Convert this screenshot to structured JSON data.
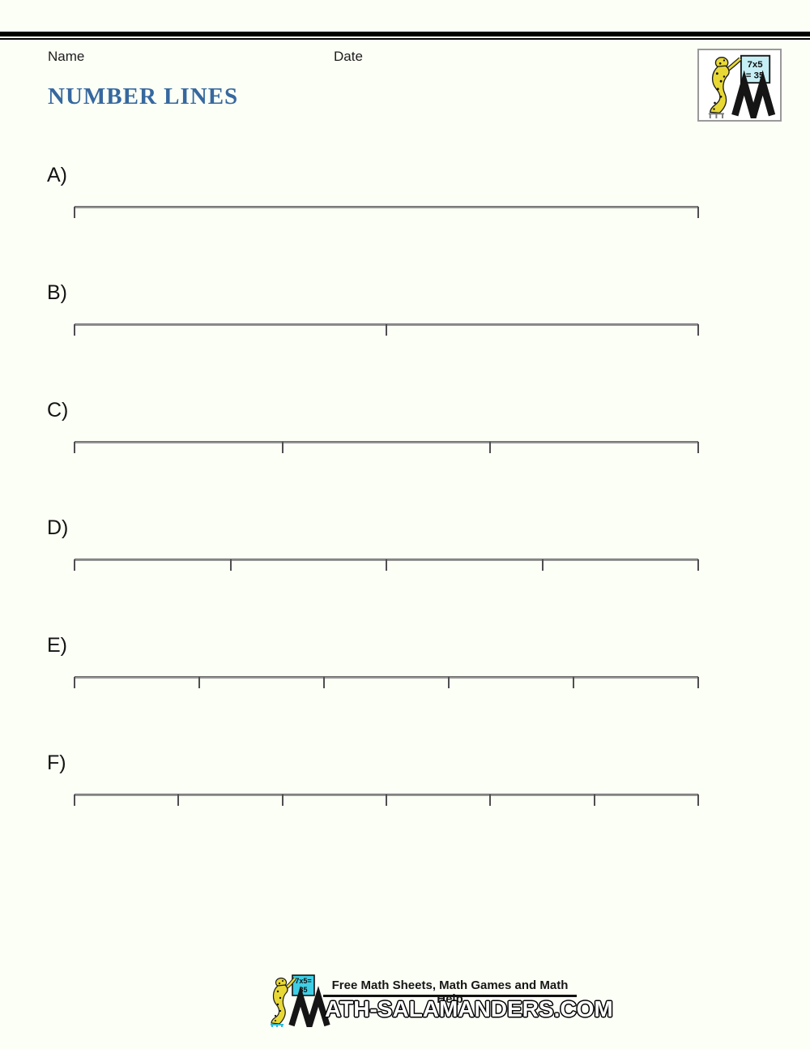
{
  "page": {
    "background": "#fcfff6"
  },
  "header": {
    "name_label": "Name",
    "date_label": "Date",
    "title": "NUMBER LINES",
    "title_color": "#36689f"
  },
  "logo": {
    "board_line1": "7x5",
    "board_line2": "= 35",
    "board_color": "#c6eff5",
    "salamander_color": "#e8d835"
  },
  "exercises": [
    {
      "label": "A)",
      "ticks": 2
    },
    {
      "label": "B)",
      "ticks": 3
    },
    {
      "label": "C)",
      "ticks": 4
    },
    {
      "label": "D)",
      "ticks": 5
    },
    {
      "label": "E)",
      "ticks": 6
    },
    {
      "label": "F)",
      "ticks": 7
    }
  ],
  "number_line": {
    "bar_color": "#949494",
    "tick_color": "#4f4f4f"
  },
  "footer": {
    "tagline": "Free Math Sheets, Math Games and Math Help",
    "brand_text": "ATH-SALAMANDERS.COM",
    "board_line1": "7x5=",
    "board_line2": "35",
    "board_color": "#3ecfe6"
  }
}
